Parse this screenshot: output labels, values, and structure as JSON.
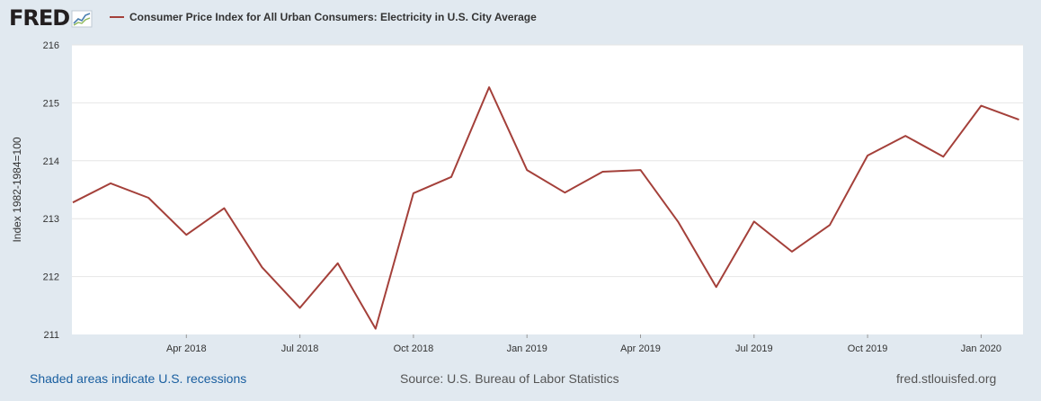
{
  "header": {
    "logo_text": "FRED",
    "series_title": "Consumer Price Index for All Urban Consumers: Electricity in U.S. City Average"
  },
  "colors": {
    "line": "#a4403a",
    "background": "#e1e9f0",
    "plot_background": "#ffffff",
    "grid": "#e6e6e6",
    "footer_link": "#1a5fa0"
  },
  "chart_data": {
    "type": "line",
    "title": "Consumer Price Index for All Urban Consumers: Electricity in U.S. City Average",
    "xlabel": "",
    "ylabel": "Index 1982-1984=100",
    "ylim": [
      211,
      216
    ],
    "y_ticks": [
      211,
      212,
      213,
      214,
      215,
      216
    ],
    "x_ticks": [
      "Apr 2018",
      "Jul 2018",
      "Oct 2018",
      "Jan 2019",
      "Apr 2019",
      "Jul 2019",
      "Oct 2019",
      "Jan 2020"
    ],
    "grid": true,
    "legend": "top-left",
    "series": [
      {
        "name": "Consumer Price Index for All Urban Consumers: Electricity in U.S. City Average",
        "x": [
          "2018-01",
          "2018-02",
          "2018-03",
          "2018-04",
          "2018-05",
          "2018-06",
          "2018-07",
          "2018-08",
          "2018-09",
          "2018-10",
          "2018-11",
          "2018-12",
          "2019-01",
          "2019-02",
          "2019-03",
          "2019-04",
          "2019-05",
          "2019-06",
          "2019-07",
          "2019-08",
          "2019-09",
          "2019-10",
          "2019-11",
          "2019-12",
          "2020-01",
          "2020-02"
        ],
        "values": [
          213.28,
          213.61,
          213.36,
          212.72,
          213.18,
          212.16,
          211.46,
          212.23,
          211.1,
          213.44,
          213.72,
          215.27,
          213.84,
          213.45,
          213.81,
          213.84,
          212.94,
          211.82,
          212.95,
          212.43,
          212.89,
          214.09,
          214.43,
          214.07,
          214.95,
          214.71
        ]
      }
    ]
  },
  "footer": {
    "recession_note": "Shaded areas indicate U.S. recessions",
    "source": "Source: U.S. Bureau of Labor Statistics",
    "site": "fred.stlouisfed.org"
  }
}
